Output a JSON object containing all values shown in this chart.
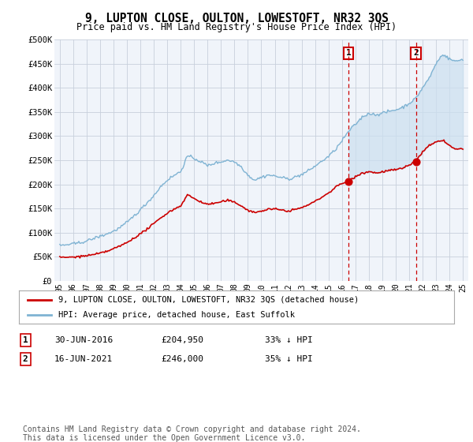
{
  "title": "9, LUPTON CLOSE, OULTON, LOWESTOFT, NR32 3QS",
  "subtitle": "Price paid vs. HM Land Registry's House Price Index (HPI)",
  "ylim": [
    0,
    500000
  ],
  "yticks": [
    0,
    50000,
    100000,
    150000,
    200000,
    250000,
    300000,
    350000,
    400000,
    450000,
    500000
  ],
  "ytick_labels": [
    "£0",
    "£50K",
    "£100K",
    "£150K",
    "£200K",
    "£250K",
    "£300K",
    "£350K",
    "£400K",
    "£450K",
    "£500K"
  ],
  "hpi_color": "#7fb3d3",
  "hpi_fill_color": "#cce0f0",
  "price_color": "#cc0000",
  "annotation_color": "#cc0000",
  "bg_color": "#f0f4fa",
  "grid_color": "#c8d0dc",
  "sale1_date": 2016.5,
  "sale1_price": 204950,
  "sale2_date": 2021.5,
  "sale2_price": 246000,
  "legend_entry1": "9, LUPTON CLOSE, OULTON, LOWESTOFT, NR32 3QS (detached house)",
  "legend_entry2": "HPI: Average price, detached house, East Suffolk",
  "footer": "Contains HM Land Registry data © Crown copyright and database right 2024.\nThis data is licensed under the Open Government Licence v3.0.",
  "xmin": 1994.6,
  "xmax": 2025.4,
  "hpi_waypoints_x": [
    1995.0,
    1995.5,
    1996.0,
    1996.5,
    1997.0,
    1997.5,
    1998.0,
    1998.5,
    1999.0,
    1999.5,
    2000.0,
    2000.5,
    2001.0,
    2001.5,
    2002.0,
    2002.5,
    2003.0,
    2003.5,
    2004.0,
    2004.5,
    2005.0,
    2005.5,
    2006.0,
    2006.5,
    2007.0,
    2007.5,
    2008.0,
    2008.5,
    2009.0,
    2009.5,
    2010.0,
    2010.5,
    2011.0,
    2011.5,
    2012.0,
    2012.5,
    2013.0,
    2013.5,
    2014.0,
    2014.5,
    2015.0,
    2015.5,
    2016.0,
    2016.5,
    2017.0,
    2017.5,
    2018.0,
    2018.5,
    2019.0,
    2019.5,
    2020.0,
    2020.5,
    2021.0,
    2021.5,
    2022.0,
    2022.5,
    2023.0,
    2023.5,
    2024.0,
    2024.5,
    2025.0
  ],
  "hpi_waypoints_y": [
    73000,
    74000,
    76000,
    79000,
    83000,
    88000,
    93000,
    98000,
    104000,
    112000,
    122000,
    135000,
    148000,
    163000,
    178000,
    196000,
    210000,
    220000,
    228000,
    260000,
    255000,
    248000,
    240000,
    245000,
    248000,
    252000,
    248000,
    238000,
    220000,
    210000,
    215000,
    220000,
    218000,
    215000,
    212000,
    215000,
    220000,
    228000,
    238000,
    248000,
    258000,
    272000,
    290000,
    310000,
    325000,
    340000,
    348000,
    345000,
    348000,
    352000,
    355000,
    360000,
    368000,
    378000,
    400000,
    420000,
    450000,
    470000,
    460000,
    455000,
    460000
  ],
  "price_waypoints_x": [
    1995.0,
    1995.5,
    1996.0,
    1996.5,
    1997.0,
    1997.5,
    1998.0,
    1998.5,
    1999.0,
    1999.5,
    2000.0,
    2000.5,
    2001.0,
    2001.5,
    2002.0,
    2002.5,
    2003.0,
    2003.5,
    2004.0,
    2004.5,
    2005.0,
    2005.5,
    2006.0,
    2006.5,
    2007.0,
    2007.5,
    2008.0,
    2008.5,
    2009.0,
    2009.5,
    2010.0,
    2010.5,
    2011.0,
    2011.5,
    2012.0,
    2012.5,
    2013.0,
    2013.5,
    2014.0,
    2014.5,
    2015.0,
    2015.5,
    2016.0,
    2016.5,
    2017.0,
    2017.5,
    2018.0,
    2018.5,
    2019.0,
    2019.5,
    2020.0,
    2020.5,
    2021.0,
    2021.5,
    2022.0,
    2022.5,
    2023.0,
    2023.5,
    2024.0,
    2024.5,
    2025.0
  ],
  "price_waypoints_y": [
    48000,
    48500,
    49000,
    50000,
    52000,
    54000,
    57000,
    61000,
    66000,
    72000,
    79000,
    88000,
    97000,
    107000,
    118000,
    130000,
    140000,
    148000,
    155000,
    178000,
    170000,
    163000,
    158000,
    160000,
    163000,
    166000,
    162000,
    155000,
    145000,
    140000,
    143000,
    147000,
    147000,
    145000,
    143000,
    146000,
    150000,
    156000,
    163000,
    172000,
    180000,
    192000,
    200000,
    204950,
    215000,
    222000,
    225000,
    222000,
    224000,
    227000,
    228000,
    231000,
    238000,
    246000,
    265000,
    278000,
    285000,
    290000,
    278000,
    270000,
    272000
  ]
}
